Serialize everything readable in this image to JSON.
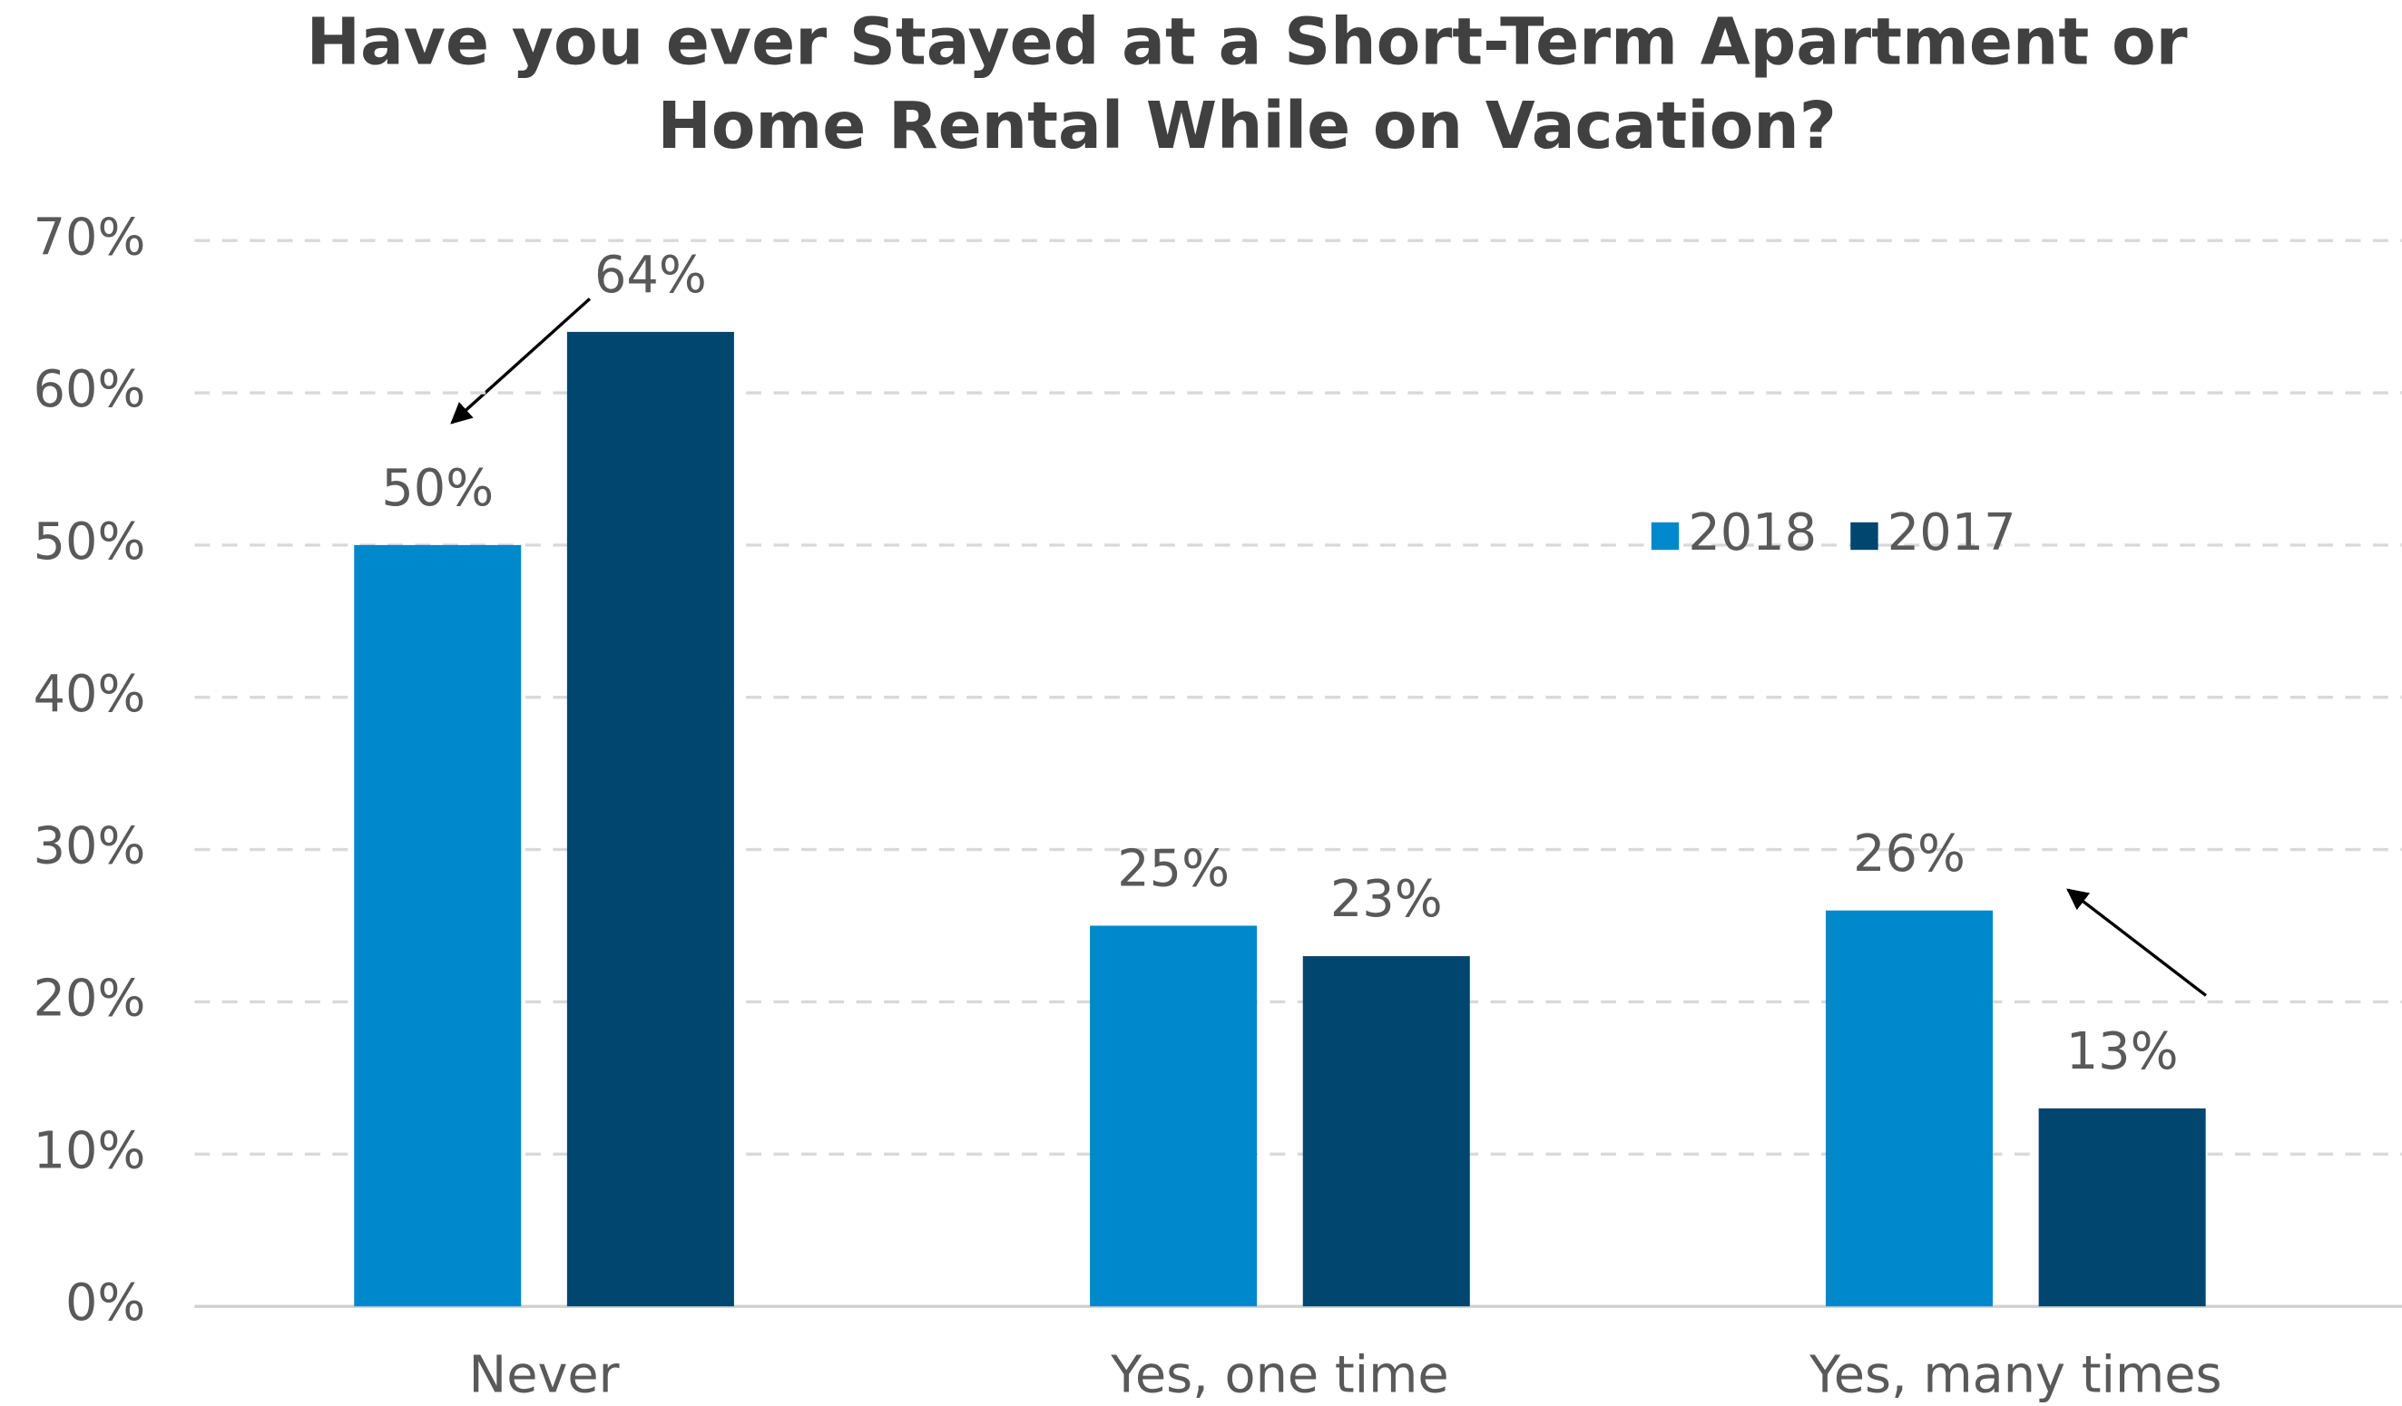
{
  "chart_data": {
    "type": "bar",
    "title": [
      "Have you ever Stayed at a Short-Term Apartment or",
      "Home Rental While on Vacation?"
    ],
    "categories": [
      "Never",
      "Yes, one time",
      "Yes, many times"
    ],
    "series": [
      {
        "name": "2018",
        "color": "#0088cc",
        "values": [
          50,
          25,
          26
        ],
        "value_labels": [
          "50%",
          "25%",
          "26%"
        ]
      },
      {
        "name": "2017",
        "color": "#00466e",
        "values": [
          64,
          23,
          13
        ],
        "value_labels": [
          "64%",
          "23%",
          "13%"
        ]
      }
    ],
    "ylim": [
      0,
      70
    ],
    "yticks": [
      {
        "value": 0,
        "label": "0%"
      },
      {
        "value": 10,
        "label": "10%"
      },
      {
        "value": 20,
        "label": "20%"
      },
      {
        "value": 30,
        "label": "30%"
      },
      {
        "value": 40,
        "label": "40%"
      },
      {
        "value": 50,
        "label": "50%"
      },
      {
        "value": 60,
        "label": "60%"
      },
      {
        "value": 70,
        "label": "70%"
      }
    ],
    "grid": true,
    "legend": "right"
  }
}
